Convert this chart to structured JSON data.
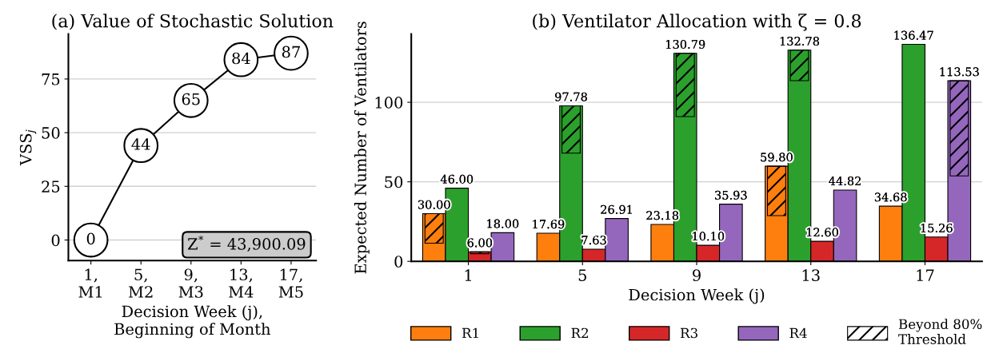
{
  "chart_data": [
    {
      "type": "line",
      "title": "(a) Value of Stochastic Solution",
      "xlabel": "Decision Week (j),\nBeginning of Month",
      "ylabel": "VSS$_{j}$",
      "categories": [
        "1,\nM1",
        "5,\nM2",
        "9,\nM3",
        "13,\nM4",
        "17,\nM5"
      ],
      "series": [
        {
          "color": "#000000",
          "values": [
            0,
            44,
            65,
            84,
            87
          ]
        }
      ],
      "ylim": [
        -9.6,
        96
      ],
      "yticks": [
        0,
        25,
        50,
        75
      ],
      "grid": "y",
      "marker": "circle",
      "line_style": "solid",
      "data_labels": true,
      "annotations": [
        "Z$^{*}$ = 43,900.09"
      ]
    },
    {
      "type": "bar",
      "title": "(b) Ventilator Allocation with ζ = 0.8",
      "xlabel": "Decision Week (j)",
      "ylabel": "Expected Number of Ventilators",
      "categories": [
        "1",
        "5",
        "9",
        "13",
        "17"
      ],
      "ylim": [
        0,
        143
      ],
      "yticks": [
        0,
        50,
        100
      ],
      "grid": "y",
      "legend": "bottom",
      "series": [
        {
          "name": "R1",
          "color": "#ff7f0e",
          "values": [
            30.0,
            17.69,
            23.18,
            59.8,
            34.68
          ],
          "value_labels": [
            "30.00",
            "17.69",
            "23.18",
            "59.80",
            "34.68"
          ]
        },
        {
          "name": "R2",
          "color": "#2ca02c",
          "values": [
            46.0,
            97.78,
            130.79,
            132.78,
            136.47
          ],
          "value_labels": [
            "46.00",
            "97.78",
            "130.79",
            "132.78",
            "136.47"
          ]
        },
        {
          "name": "R3",
          "color": "#d62728",
          "values": [
            6.0,
            7.63,
            10.1,
            12.6,
            15.26
          ],
          "value_labels": [
            "6.00",
            "7.63",
            "10.10",
            "12.60",
            "15.26"
          ]
        },
        {
          "name": "R4",
          "color": "#9467bd",
          "values": [
            18.0,
            26.91,
            35.93,
            44.82,
            113.53
          ],
          "value_labels": [
            "18.00",
            "26.91",
            "35.93",
            "44.82",
            "113.53"
          ]
        },
        {
          "name": "Beyond 80%\nThreshold",
          "color": "#000000",
          "base": [
            11.4,
            null,
            null,
            28.7,
            null
          ],
          "values": [
            18.6,
            null,
            null,
            31.1,
            null
          ]
        },
        {
          "color": "#000000",
          "base": [
            null,
            68.0,
            91.0,
            113.6,
            null
          ],
          "values": [
            null,
            29.78,
            39.79,
            19.18,
            null
          ]
        },
        {
          "color": "#000000",
          "base": [
            4.8,
            null,
            null,
            null,
            null
          ],
          "values": [
            1.2,
            null,
            null,
            null,
            null
          ]
        },
        {
          "color": "#000000",
          "base": [
            null,
            null,
            null,
            null,
            53.7
          ],
          "values": [
            null,
            null,
            null,
            null,
            59.83
          ]
        }
      ]
    }
  ]
}
